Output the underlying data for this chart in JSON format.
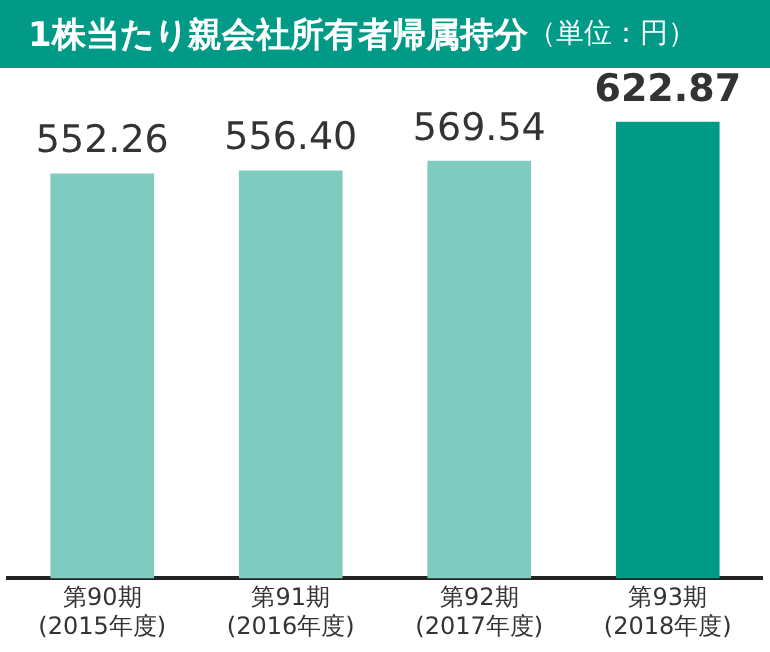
{
  "chart_data": {
    "type": "bar",
    "title": "1株当たり親会社所有者帰属持分",
    "subtitle": "（単位：円）",
    "categories": [
      "第90期\n(2015年度)",
      "第91期\n(2016年度)",
      "第92期\n(2017年度)",
      "第93期\n(2018年度)"
    ],
    "values": [
      552.26,
      556.4,
      569.54,
      622.87
    ],
    "value_labels": [
      "552.26",
      "556.40",
      "569.54",
      "622.87"
    ],
    "colors": [
      "#80cbc0",
      "#80cbc0",
      "#80cbc0",
      "#009a87"
    ],
    "legend": false
  }
}
